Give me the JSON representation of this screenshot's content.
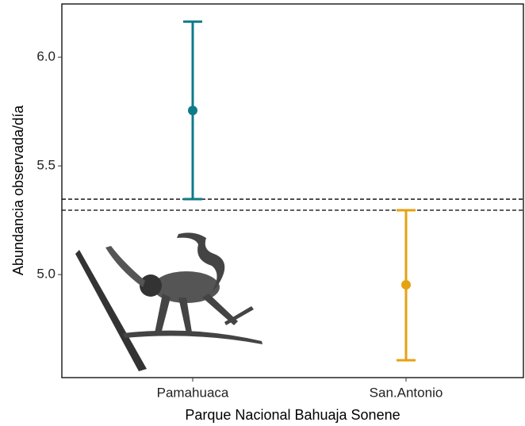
{
  "chart_data": {
    "type": "errorbar",
    "x_label": "Parque Nacional Bahuaja Sonene",
    "y_label": "Abundancia observada/día",
    "categories": [
      "Pamahuaca",
      "San.Antonio"
    ],
    "values": [
      5.755,
      4.953
    ],
    "lower": [
      5.347,
      4.606
    ],
    "upper": [
      6.164,
      5.296
    ],
    "colors": [
      "#0f7b8a",
      "#e6a212"
    ],
    "hlines": [
      5.347,
      5.296
    ],
    "ylim": [
      4.526,
      6.245
    ],
    "yticks": [
      {
        "value": 5,
        "label": "5.0"
      },
      5.5,
      {
        "value": 6,
        "label": "6.0"
      }
    ]
  }
}
